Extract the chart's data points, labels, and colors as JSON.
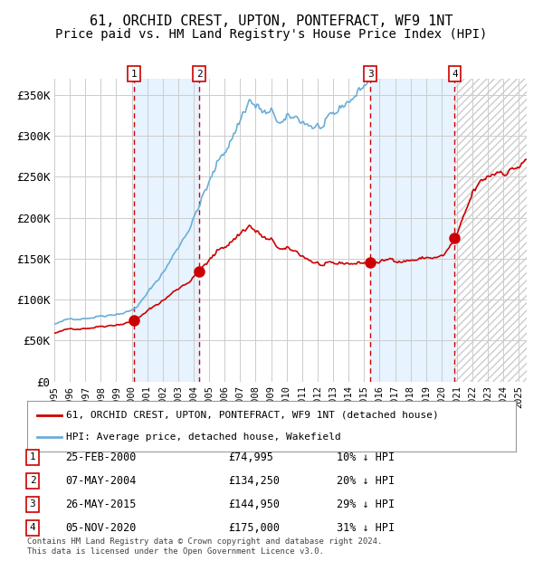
{
  "title": "61, ORCHID CREST, UPTON, PONTEFRACT, WF9 1NT",
  "subtitle": "Price paid vs. HM Land Registry's House Price Index (HPI)",
  "xlabel": "",
  "ylabel": "",
  "ylim": [
    0,
    370000
  ],
  "xlim_start": 1995.0,
  "xlim_end": 2025.5,
  "yticks": [
    0,
    50000,
    100000,
    150000,
    200000,
    250000,
    300000,
    350000
  ],
  "ytick_labels": [
    "£0",
    "£50K",
    "£100K",
    "£150K",
    "£200K",
    "£250K",
    "£300K",
    "£350K"
  ],
  "xticks": [
    1995,
    1996,
    1997,
    1998,
    1999,
    2000,
    2001,
    2002,
    2003,
    2004,
    2005,
    2006,
    2007,
    2008,
    2009,
    2010,
    2011,
    2012,
    2013,
    2014,
    2015,
    2016,
    2017,
    2018,
    2019,
    2020,
    2021,
    2022,
    2023,
    2024,
    2025
  ],
  "title_fontsize": 11,
  "subtitle_fontsize": 10,
  "background_color": "#ffffff",
  "grid_color": "#cccccc",
  "hpi_color": "#6baed6",
  "price_color": "#cc0000",
  "sale_marker_color": "#cc0000",
  "vline_color": "#cc0000",
  "shade_color": "#ddeeff",
  "hatch_color": "#bbbbbb",
  "sale_dates": [
    2000.15,
    2004.35,
    2015.4,
    2020.85
  ],
  "sale_prices": [
    74995,
    134250,
    144950,
    175000
  ],
  "sale_labels": [
    "1",
    "2",
    "3",
    "4"
  ],
  "sale_info": [
    {
      "num": "1",
      "date": "25-FEB-2000",
      "price": "£74,995",
      "hpi": "10% ↓ HPI"
    },
    {
      "num": "2",
      "date": "07-MAY-2004",
      "price": "£134,250",
      "hpi": "20% ↓ HPI"
    },
    {
      "num": "3",
      "date": "26-MAY-2015",
      "price": "£144,950",
      "hpi": "29% ↓ HPI"
    },
    {
      "num": "4",
      "date": "05-NOV-2020",
      "price": "£175,000",
      "hpi": "31% ↓ HPI"
    }
  ],
  "legend_price_label": "61, ORCHID CREST, UPTON, PONTEFRACT, WF9 1NT (detached house)",
  "legend_hpi_label": "HPI: Average price, detached house, Wakefield",
  "footer": "Contains HM Land Registry data © Crown copyright and database right 2024.\nThis data is licensed under the Open Government Licence v3.0."
}
